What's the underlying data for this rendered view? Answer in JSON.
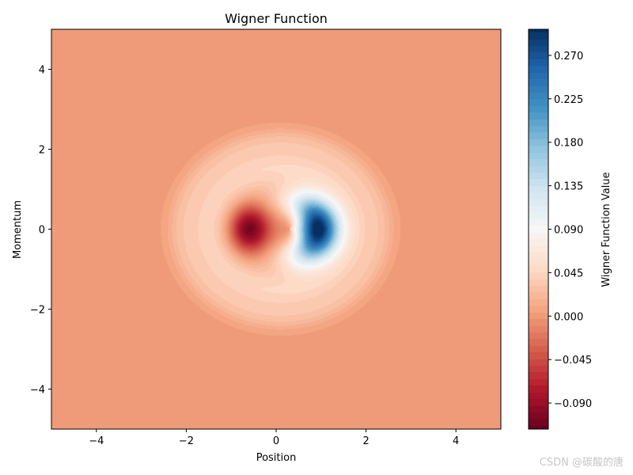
{
  "chart_data": {
    "type": "heatmap",
    "title": "Wigner Function",
    "xlabel": "Position",
    "ylabel": "Momentum",
    "xlim": [
      -5,
      5
    ],
    "ylim": [
      -5,
      5
    ],
    "x_ticks": [
      -4,
      -2,
      0,
      2,
      4
    ],
    "y_ticks": [
      -4,
      -2,
      0,
      2,
      4
    ],
    "grid": false,
    "colormap": "RdBu",
    "colorbar": {
      "label": "Wigner Function Value",
      "range": [
        -0.117,
        0.297
      ],
      "ticks": [
        -0.09,
        -0.045,
        0.0,
        0.045,
        0.09,
        0.135,
        0.18,
        0.225,
        0.27
      ],
      "tick_labels": [
        "−0.090",
        "−0.045",
        "0.000",
        "0.045",
        "0.090",
        "0.135",
        "0.180",
        "0.225",
        "0.270"
      ]
    },
    "features": {
      "background_value": 0.0,
      "negative_lobe": {
        "x": -0.6,
        "p": 0.0,
        "min_value": -0.117
      },
      "positive_lobe": {
        "x": 0.85,
        "p": 0.0,
        "max_value": 0.297
      },
      "outer_ring_radius": 2.4
    }
  },
  "watermark": "CSDN @碳酸的唐"
}
